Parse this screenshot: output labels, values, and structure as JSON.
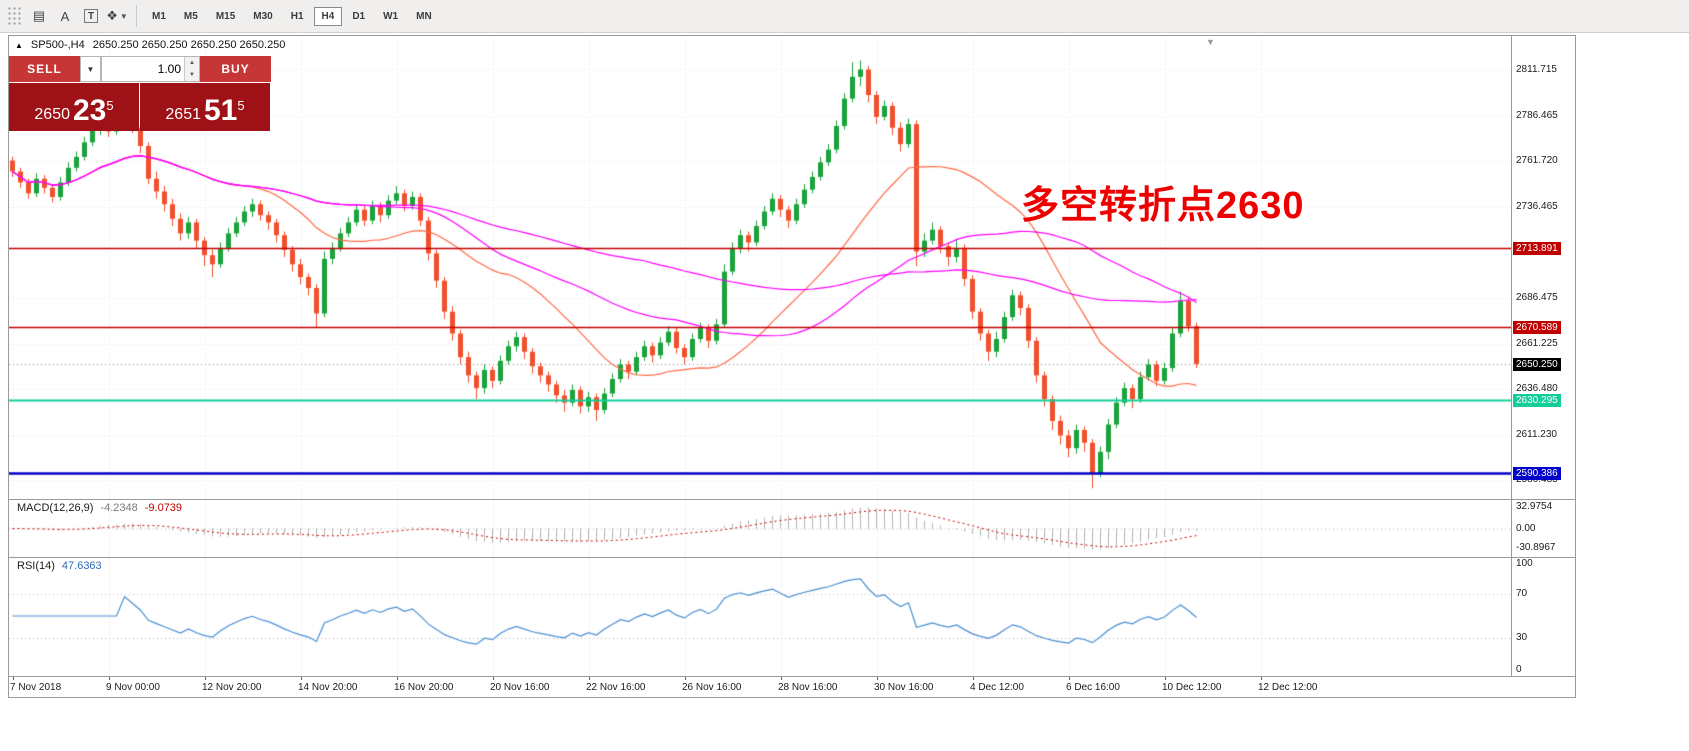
{
  "toolbar": {
    "icons": [
      {
        "name": "chart-grid-icon",
        "glyph": "▤"
      },
      {
        "name": "cursor-a-icon",
        "glyph": "A"
      },
      {
        "name": "text-tool-icon",
        "glyph": "T"
      },
      {
        "name": "shapes-dropdown-icon",
        "glyph": "❖"
      },
      {
        "name": "dropdown-caret",
        "glyph": "▼"
      }
    ],
    "timeframes": [
      "M1",
      "M5",
      "M15",
      "M30",
      "H1",
      "H4",
      "D1",
      "W1",
      "MN"
    ],
    "active_timeframe": "H4"
  },
  "chart_header": {
    "expand_marker": "▲",
    "symbol": "SP500-,H4",
    "ohlc": "2650.250 2650.250 2650.250 2650.250"
  },
  "trade_panel": {
    "sell_label": "SELL",
    "buy_label": "BUY",
    "volume": "1.00",
    "dropdown_caret": "▼",
    "spin_up": "▲",
    "spin_down": "▼",
    "bid": {
      "small": "2650",
      "big": "23",
      "sup": "5"
    },
    "ask": {
      "small": "2651",
      "big": "51",
      "sup": "5"
    }
  },
  "annotation": {
    "text": "多空转折点2630",
    "color": "#ee0000"
  },
  "chart_data": {
    "type": "candlestick",
    "symbol": "SP500-",
    "period": "H4",
    "up_color": "#1ca23c",
    "down_color": "#f0502d",
    "price_range": [
      2576.1,
      2830.4
    ],
    "price_ticks": [
      {
        "v": 2811.715,
        "t": "2811.715"
      },
      {
        "v": 2786.465,
        "t": "2786.465"
      },
      {
        "v": 2761.72,
        "t": "2761.720"
      },
      {
        "v": 2736.465,
        "t": "2736.465"
      },
      {
        "v": 2686.475,
        "t": "2686.475"
      },
      {
        "v": 2661.225,
        "t": "2661.225"
      },
      {
        "v": 2636.48,
        "t": "2636.480"
      },
      {
        "v": 2611.23,
        "t": "2611.230"
      },
      {
        "v": 2586.485,
        "t": "2586.485"
      }
    ],
    "hlines": [
      {
        "v": 2713.891,
        "t": "2713.891",
        "color": "#c00000",
        "w": 1.6
      },
      {
        "v": 2670.589,
        "t": "2670.589",
        "color": "#c00000",
        "w": 1.6
      },
      {
        "v": 2630.295,
        "t": "2630.295",
        "color": "#13ce9a",
        "w": 2
      },
      {
        "v": 2590.386,
        "t": "2590.386",
        "color": "#0000c8",
        "w": 2.4
      }
    ],
    "current_price": {
      "v": 2650.25,
      "t": "2650.250",
      "color": "#000000"
    },
    "moving_averages": [
      {
        "period": 24,
        "color": "#ff6a45"
      },
      {
        "period": 45,
        "color": "#ff00ff"
      },
      {
        "period": 80,
        "color": "#ff00ff"
      }
    ],
    "time_labels": [
      {
        "i": 0,
        "t": "7 Nov 2018"
      },
      {
        "i": 12,
        "t": "9 Nov 00:00"
      },
      {
        "i": 24,
        "t": "12 Nov 20:00"
      },
      {
        "i": 36,
        "t": "14 Nov 20:00"
      },
      {
        "i": 48,
        "t": "16 Nov 20:00"
      },
      {
        "i": 60,
        "t": "20 Nov 16:00"
      },
      {
        "i": 72,
        "t": "22 Nov 16:00"
      },
      {
        "i": 84,
        "t": "26 Nov 16:00"
      },
      {
        "i": 96,
        "t": "28 Nov 16:00"
      },
      {
        "i": 108,
        "t": "30 Nov 16:00"
      },
      {
        "i": 120,
        "t": "4 Dec 12:00"
      },
      {
        "i": 132,
        "t": "6 Dec 16:00"
      },
      {
        "i": 144,
        "t": "10 Dec 12:00"
      },
      {
        "i": 156,
        "t": "12 Dec 12:00"
      }
    ],
    "indicators": {
      "macd": {
        "label": "MACD(12,26,9)",
        "value_main": "-4.2348",
        "value_signal": "-9.0739",
        "fast": 12,
        "slow": 26,
        "signal": 9,
        "range": 40,
        "axis": [
          {
            "v": 32.9754,
            "t": "32.9754"
          },
          {
            "v": 0,
            "t": "0.00"
          },
          {
            "v": -30.8967,
            "t": "-30.8967"
          }
        ],
        "hist_color": "#b4b4b4",
        "signal_color": "#d00000"
      },
      "rsi": {
        "label": "RSI(14)",
        "value": "47.6363",
        "period": 14,
        "levels": [
          70,
          30
        ],
        "axis": [
          {
            "v": 100,
            "t": "100"
          },
          {
            "v": 70,
            "t": "70"
          },
          {
            "v": 30,
            "t": "30"
          },
          {
            "v": 0,
            "t": "0"
          }
        ],
        "color": "#4a8fd4"
      }
    },
    "candles": [
      [
        2762,
        2764,
        2753,
        2756
      ],
      [
        2756,
        2758,
        2747,
        2750
      ],
      [
        2750,
        2752,
        2741,
        2744
      ],
      [
        2744,
        2755,
        2742,
        2752
      ],
      [
        2752,
        2754,
        2744,
        2747
      ],
      [
        2747,
        2749,
        2739,
        2742
      ],
      [
        2742,
        2753,
        2740,
        2750
      ],
      [
        2750,
        2761,
        2748,
        2758
      ],
      [
        2758,
        2767,
        2756,
        2764
      ],
      [
        2764,
        2775,
        2762,
        2772
      ],
      [
        2772,
        2782,
        2770,
        2779
      ],
      [
        2779,
        2788,
        2776,
        2785
      ],
      [
        2785,
        2787,
        2775,
        2778
      ],
      [
        2778,
        2786,
        2776,
        2783
      ],
      [
        2783,
        2791,
        2780,
        2788
      ],
      [
        2788,
        2790,
        2777,
        2780
      ],
      [
        2780,
        2782,
        2766,
        2770
      ],
      [
        2770,
        2772,
        2749,
        2752
      ],
      [
        2752,
        2756,
        2741,
        2745
      ],
      [
        2745,
        2748,
        2734,
        2738
      ],
      [
        2738,
        2741,
        2726,
        2730
      ],
      [
        2730,
        2733,
        2718,
        2722
      ],
      [
        2722,
        2731,
        2719,
        2728
      ],
      [
        2728,
        2730,
        2714,
        2718
      ],
      [
        2718,
        2720,
        2704,
        2710
      ],
      [
        2710,
        2713,
        2698,
        2705
      ],
      [
        2705,
        2717,
        2703,
        2714
      ],
      [
        2714,
        2725,
        2712,
        2722
      ],
      [
        2722,
        2731,
        2720,
        2728
      ],
      [
        2728,
        2737,
        2726,
        2734
      ],
      [
        2734,
        2741,
        2731,
        2738
      ],
      [
        2738,
        2740,
        2729,
        2732
      ],
      [
        2732,
        2734,
        2724,
        2728
      ],
      [
        2728,
        2730,
        2717,
        2721
      ],
      [
        2721,
        2723,
        2709,
        2713
      ],
      [
        2713,
        2715,
        2701,
        2705
      ],
      [
        2705,
        2708,
        2694,
        2698
      ],
      [
        2698,
        2700,
        2688,
        2692
      ],
      [
        2692,
        2694,
        2670,
        2678
      ],
      [
        2678,
        2712,
        2676,
        2708
      ],
      [
        2708,
        2717,
        2705,
        2714
      ],
      [
        2714,
        2725,
        2712,
        2722
      ],
      [
        2722,
        2731,
        2720,
        2728
      ],
      [
        2728,
        2738,
        2726,
        2735
      ],
      [
        2735,
        2737,
        2726,
        2729
      ],
      [
        2729,
        2740,
        2727,
        2737
      ],
      [
        2737,
        2739,
        2728,
        2732
      ],
      [
        2732,
        2743,
        2730,
        2740
      ],
      [
        2740,
        2748,
        2738,
        2744
      ],
      [
        2744,
        2746,
        2734,
        2737
      ],
      [
        2737,
        2745,
        2735,
        2742
      ],
      [
        2742,
        2744,
        2726,
        2729
      ],
      [
        2729,
        2731,
        2707,
        2711
      ],
      [
        2711,
        2713,
        2692,
        2696
      ],
      [
        2696,
        2698,
        2675,
        2679
      ],
      [
        2679,
        2682,
        2663,
        2667
      ],
      [
        2667,
        2669,
        2650,
        2654
      ],
      [
        2654,
        2657,
        2640,
        2644
      ],
      [
        2644,
        2646,
        2631,
        2637
      ],
      [
        2637,
        2650,
        2634,
        2647
      ],
      [
        2647,
        2649,
        2637,
        2641
      ],
      [
        2641,
        2655,
        2639,
        2652
      ],
      [
        2652,
        2663,
        2650,
        2660
      ],
      [
        2660,
        2668,
        2657,
        2665
      ],
      [
        2665,
        2667,
        2653,
        2657
      ],
      [
        2657,
        2659,
        2645,
        2649
      ],
      [
        2649,
        2651,
        2640,
        2644
      ],
      [
        2644,
        2646,
        2635,
        2639
      ],
      [
        2639,
        2641,
        2629,
        2633
      ],
      [
        2633,
        2636,
        2624,
        2629
      ],
      [
        2629,
        2639,
        2627,
        2636
      ],
      [
        2636,
        2638,
        2623,
        2627
      ],
      [
        2627,
        2635,
        2624,
        2632
      ],
      [
        2632,
        2634,
        2619,
        2625
      ],
      [
        2625,
        2637,
        2623,
        2634
      ],
      [
        2634,
        2645,
        2632,
        2642
      ],
      [
        2642,
        2653,
        2640,
        2650
      ],
      [
        2650,
        2652,
        2642,
        2646
      ],
      [
        2646,
        2657,
        2644,
        2654
      ],
      [
        2654,
        2663,
        2652,
        2660
      ],
      [
        2660,
        2662,
        2651,
        2655
      ],
      [
        2655,
        2665,
        2653,
        2662
      ],
      [
        2662,
        2671,
        2660,
        2668
      ],
      [
        2668,
        2670,
        2656,
        2659
      ],
      [
        2659,
        2661,
        2650,
        2654
      ],
      [
        2654,
        2667,
        2652,
        2664
      ],
      [
        2664,
        2673,
        2662,
        2670
      ],
      [
        2670,
        2672,
        2659,
        2663
      ],
      [
        2663,
        2675,
        2661,
        2672
      ],
      [
        2672,
        2705,
        2670,
        2701
      ],
      [
        2701,
        2717,
        2699,
        2714
      ],
      [
        2714,
        2724,
        2711,
        2721
      ],
      [
        2721,
        2723,
        2712,
        2717
      ],
      [
        2717,
        2729,
        2715,
        2726
      ],
      [
        2726,
        2737,
        2724,
        2734
      ],
      [
        2734,
        2744,
        2732,
        2741
      ],
      [
        2741,
        2743,
        2731,
        2735
      ],
      [
        2735,
        2737,
        2725,
        2729
      ],
      [
        2729,
        2741,
        2727,
        2738
      ],
      [
        2738,
        2749,
        2736,
        2746
      ],
      [
        2746,
        2756,
        2744,
        2753
      ],
      [
        2753,
        2764,
        2751,
        2761
      ],
      [
        2761,
        2771,
        2759,
        2768
      ],
      [
        2768,
        2784,
        2766,
        2781
      ],
      [
        2781,
        2799,
        2779,
        2796
      ],
      [
        2796,
        2816,
        2794,
        2808
      ],
      [
        2808,
        2817,
        2803,
        2812
      ],
      [
        2812,
        2814,
        2794,
        2798
      ],
      [
        2798,
        2800,
        2782,
        2786
      ],
      [
        2786,
        2795,
        2784,
        2792
      ],
      [
        2792,
        2794,
        2776,
        2780
      ],
      [
        2780,
        2783,
        2767,
        2771
      ],
      [
        2771,
        2785,
        2769,
        2782
      ],
      [
        2782,
        2784,
        2704,
        2712
      ],
      [
        2712,
        2722,
        2709,
        2718
      ],
      [
        2718,
        2728,
        2716,
        2724
      ],
      [
        2724,
        2726,
        2711,
        2715
      ],
      [
        2715,
        2717,
        2704,
        2709
      ],
      [
        2709,
        2719,
        2706,
        2714
      ],
      [
        2714,
        2716,
        2693,
        2697
      ],
      [
        2697,
        2699,
        2675,
        2679
      ],
      [
        2679,
        2681,
        2663,
        2667
      ],
      [
        2667,
        2669,
        2652,
        2657
      ],
      [
        2657,
        2668,
        2654,
        2664
      ],
      [
        2664,
        2679,
        2662,
        2676
      ],
      [
        2676,
        2691,
        2674,
        2688
      ],
      [
        2688,
        2690,
        2677,
        2681
      ],
      [
        2681,
        2683,
        2659,
        2663
      ],
      [
        2663,
        2665,
        2640,
        2644
      ],
      [
        2644,
        2646,
        2627,
        2631
      ],
      [
        2631,
        2633,
        2614,
        2619
      ],
      [
        2619,
        2622,
        2606,
        2611
      ],
      [
        2611,
        2614,
        2599,
        2604
      ],
      [
        2604,
        2617,
        2601,
        2614
      ],
      [
        2614,
        2616,
        2602,
        2607
      ],
      [
        2607,
        2609,
        2582,
        2590
      ],
      [
        2590,
        2605,
        2588,
        2602
      ],
      [
        2602,
        2620,
        2598,
        2617
      ],
      [
        2617,
        2632,
        2615,
        2629
      ],
      [
        2629,
        2640,
        2627,
        2637
      ],
      [
        2637,
        2639,
        2626,
        2631
      ],
      [
        2631,
        2646,
        2629,
        2643
      ],
      [
        2643,
        2653,
        2641,
        2650
      ],
      [
        2650,
        2652,
        2638,
        2641
      ],
      [
        2641,
        2651,
        2639,
        2648
      ],
      [
        2648,
        2670,
        2646,
        2667
      ],
      [
        2667,
        2690,
        2665,
        2685
      ],
      [
        2685,
        2687,
        2668,
        2671
      ],
      [
        2671,
        2673,
        2648,
        2650.3
      ]
    ]
  }
}
